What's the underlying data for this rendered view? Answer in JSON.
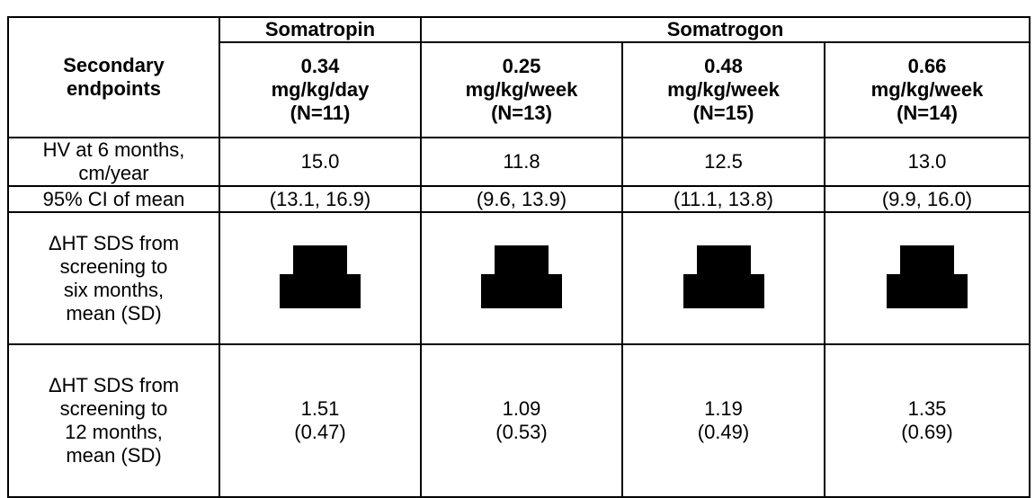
{
  "table": {
    "header": {
      "row_label": [
        "Secondary",
        "endpoints"
      ],
      "groups": [
        "Somatropin",
        "Somatrogon"
      ],
      "columns": [
        [
          "0.34",
          "mg/kg/day",
          "(N=11)"
        ],
        [
          "0.25",
          "mg/kg/week",
          "(N=13)"
        ],
        [
          "0.48",
          "mg/kg/week",
          "(N=15)"
        ],
        [
          "0.66",
          "mg/kg/week",
          "(N=14)"
        ]
      ]
    },
    "rows": [
      {
        "label": [
          "HV at 6 months,",
          "cm/year"
        ],
        "cells": [
          [
            "15.0"
          ],
          [
            "11.8"
          ],
          [
            "12.5"
          ],
          [
            "13.0"
          ]
        ]
      },
      {
        "label": [
          "95% CI of mean"
        ],
        "cells": [
          [
            "(13.1, 16.9)"
          ],
          [
            "(9.6, 13.9)"
          ],
          [
            "(11.1, 13.8)"
          ],
          [
            "(9.9, 16.0)"
          ]
        ]
      },
      {
        "label": [
          "ΔHT SDS from",
          "screening to",
          "six months,",
          "mean (SD)"
        ]
      },
      {
        "label": [
          "ΔHT SDS from",
          "screening to",
          "12 months,",
          "mean (SD)"
        ],
        "cells": [
          [
            "1.51",
            "(0.47)"
          ],
          [
            "1.09",
            "(0.53)"
          ],
          [
            "1.19",
            "(0.49)"
          ],
          [
            "1.35",
            "(0.69)"
          ]
        ]
      }
    ]
  }
}
